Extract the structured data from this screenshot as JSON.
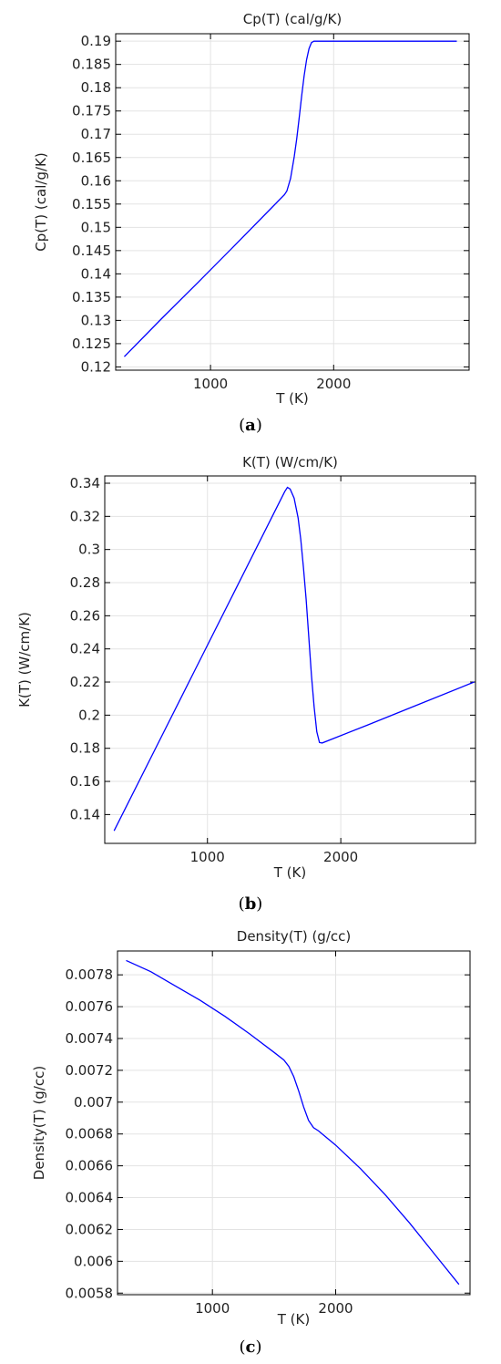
{
  "panels": [
    {
      "caption_open": "(",
      "caption_letter": "a",
      "caption_close": ")",
      "chart_data": {
        "type": "line",
        "title": "Cp(T) (cal/g/K)",
        "xlabel": "T (K)",
        "ylabel": "Cp(T) (cal/g/K)",
        "xlim": [
          230,
          3100
        ],
        "ylim": [
          0.1193,
          0.1916
        ],
        "xticks": [
          1000,
          2000
        ],
        "xtick_labels": [
          "1000",
          "2000"
        ],
        "yticks": [
          0.12,
          0.125,
          0.13,
          0.135,
          0.14,
          0.145,
          0.15,
          0.155,
          0.16,
          0.165,
          0.17,
          0.175,
          0.18,
          0.185,
          0.19
        ],
        "ytick_labels": [
          "0.12",
          "0.125",
          "0.13",
          "0.135",
          "0.14",
          "0.145",
          "0.15",
          "0.155",
          "0.16",
          "0.165",
          "0.17",
          "0.175",
          "0.18",
          "0.185",
          "0.19"
        ],
        "grid": true,
        "color": "#0000ff",
        "series": [
          {
            "x": [
              300,
              600,
              900,
              1200,
              1500,
              1600,
              1620,
              1650,
              1680,
              1700,
              1720,
              1740,
              1760,
              1780,
              1800,
              1820,
              1840,
              1860,
              2200,
              2600,
              3000
            ],
            "y": [
              0.1222,
              0.1303,
              0.1382,
              0.1462,
              0.1543,
              0.157,
              0.1578,
              0.1605,
              0.1652,
              0.169,
              0.1735,
              0.1782,
              0.1825,
              0.186,
              0.1884,
              0.1897,
              0.19,
              0.19,
              0.19,
              0.19,
              0.19
            ]
          }
        ]
      }
    },
    {
      "caption_open": "(",
      "caption_letter": "b",
      "caption_close": ")",
      "chart_data": {
        "type": "line",
        "title": "K(T) (W/cm/K)",
        "xlabel": "T (K)",
        "ylabel": "K(T) (W/cm/K)",
        "xlim": [
          230,
          3010
        ],
        "ylim": [
          0.1226,
          0.3444
        ],
        "xticks": [
          1000,
          2000
        ],
        "xtick_labels": [
          "1000",
          "2000"
        ],
        "yticks": [
          0.14,
          0.16,
          0.18,
          0.2,
          0.22,
          0.24,
          0.26,
          0.28,
          0.3,
          0.32,
          0.34
        ],
        "ytick_labels": [
          "0.14",
          "0.16",
          "0.18",
          "0.2",
          "0.22",
          "0.24",
          "0.26",
          "0.28",
          "0.3",
          "0.32",
          "0.34"
        ],
        "grid": true,
        "color": "#0000ff",
        "series": [
          {
            "x": [
              300,
              600,
              900,
              1200,
              1500,
              1580,
              1600,
              1620,
              1650,
              1680,
              1700,
              1720,
              1740,
              1760,
              1780,
              1800,
              1820,
              1840,
              1860,
              2200,
              2600,
              3000
            ],
            "y": [
              0.1302,
              0.1782,
              0.2262,
              0.2742,
              0.3222,
              0.335,
              0.3375,
              0.3365,
              0.331,
              0.319,
              0.306,
              0.289,
              0.27,
              0.247,
              0.224,
              0.205,
              0.19,
              0.1835,
              0.1832,
              0.194,
              0.207,
              0.22
            ]
          }
        ]
      }
    },
    {
      "caption_open": "(",
      "caption_letter": "c",
      "caption_close": ")",
      "chart_data": {
        "type": "line",
        "title": "Density(T) (g/cc)",
        "xlabel": "T (K)",
        "ylabel": "Density(T) (g/cc)",
        "xlim": [
          230,
          3090
        ],
        "ylim": [
          0.00579,
          0.00795
        ],
        "xticks": [
          1000,
          2000
        ],
        "xtick_labels": [
          "1000",
          "2000"
        ],
        "yticks": [
          0.0058,
          0.006,
          0.0062,
          0.0064,
          0.0066,
          0.0068,
          0.007,
          0.0072,
          0.0074,
          0.0076,
          0.0078
        ],
        "ytick_labels": [
          "0.0058",
          "0.006",
          "0.0062",
          "0.0064",
          "0.0066",
          "0.0068",
          "0.007",
          "0.0072",
          "0.0074",
          "0.0076",
          "0.0078"
        ],
        "grid": true,
        "color": "#0000ff",
        "series": [
          {
            "x": [
              300,
              500,
              700,
              900,
              1100,
              1300,
              1500,
              1580,
              1620,
              1660,
              1700,
              1740,
              1780,
              1820,
              1860,
              2000,
              2200,
              2400,
              2600,
              2800,
              3000
            ],
            "y": [
              0.00789,
              0.00782,
              0.00773,
              0.00764,
              0.00754,
              0.00743,
              0.007313,
              0.007265,
              0.007225,
              0.00716,
              0.00707,
              0.00697,
              0.006885,
              0.00684,
              0.00682,
              0.00673,
              0.006583,
              0.00642,
              0.00624,
              0.006047,
              0.005855
            ]
          }
        ]
      }
    }
  ]
}
